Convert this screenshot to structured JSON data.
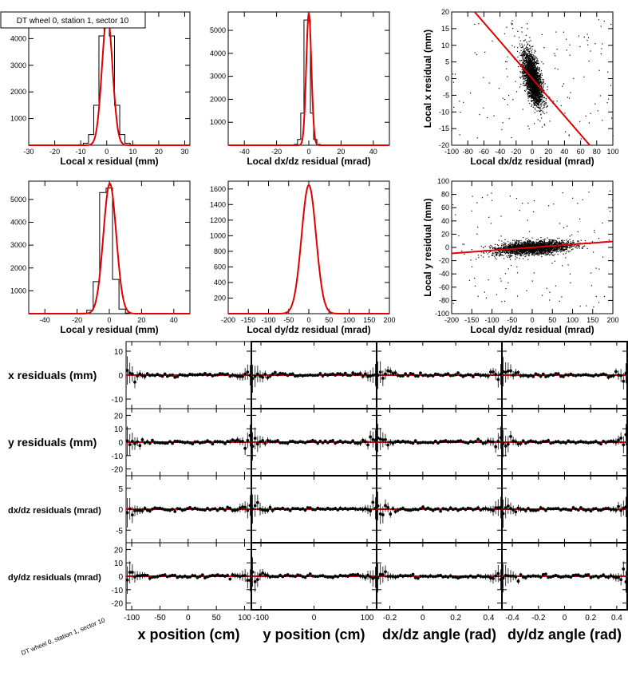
{
  "chart_data": [
    {
      "type": "histogram",
      "title": "DT wheel 0, station 1, sector 10",
      "xlabel": "Local x residual (mm)",
      "xlim": [
        -30,
        32
      ],
      "ylim": [
        0,
        5000
      ],
      "xticks": [
        "-30",
        "-20",
        "-10",
        "0",
        "10",
        "20",
        "30"
      ],
      "yticks": [
        "1000",
        "2000",
        "3000",
        "4000"
      ],
      "bins": {
        "x": [
          -12,
          -10,
          -8,
          -6,
          -4,
          -2,
          0,
          2,
          4,
          6,
          8,
          10,
          12
        ],
        "counts": [
          5,
          20,
          80,
          400,
          1500,
          4100,
          5000,
          4100,
          1500,
          400,
          80,
          20,
          5
        ]
      },
      "fit": {
        "mean": 0.2,
        "sigma": 2.0,
        "amplitude": 4900,
        "color": "#e00000"
      }
    },
    {
      "type": "histogram",
      "xlabel": "Local dx/dz residual (mrad)",
      "xlim": [
        -50,
        50
      ],
      "ylim": [
        0,
        5800
      ],
      "xticks": [
        "-40",
        "-20",
        "0",
        "20",
        "40"
      ],
      "yticks": [
        "1000",
        "2000",
        "3000",
        "4000",
        "5000"
      ],
      "bins": {
        "x": [
          -8,
          -6,
          -4,
          -2,
          0,
          2,
          4,
          6,
          8
        ],
        "counts": [
          40,
          250,
          1400,
          5450,
          5450,
          1400,
          250,
          40,
          5
        ]
      },
      "fit": {
        "mean": 0,
        "sigma": 1.6,
        "amplitude": 5750,
        "color": "#e00000"
      }
    },
    {
      "type": "scatter",
      "xlabel": "Local dx/dz residual (mrad)",
      "ylabel": "Local x residual (mm)",
      "xlim": [
        -100,
        100
      ],
      "ylim": [
        -20,
        20
      ],
      "xticks": [
        "-100",
        "-80",
        "-60",
        "-40",
        "-20",
        "0",
        "20",
        "40",
        "60",
        "80",
        "100"
      ],
      "yticks": [
        "-20",
        "-15",
        "-10",
        "-5",
        "0",
        "5",
        "10",
        "15",
        "20"
      ],
      "fit_line": {
        "slope": -0.28,
        "intercept": 0,
        "color": "#e00000"
      },
      "point_cloud": {
        "center": [
          0,
          0
        ],
        "spread": [
          6,
          4
        ],
        "correlation": -0.6
      }
    },
    {
      "type": "histogram",
      "xlabel": "Local y residual (mm)",
      "xlim": [
        -50,
        50
      ],
      "ylim": [
        0,
        5800
      ],
      "xticks": [
        "-40",
        "-20",
        "0",
        "20",
        "40"
      ],
      "yticks": [
        "1000",
        "2000",
        "3000",
        "4000",
        "5000"
      ],
      "bins": {
        "x": [
          -16,
          -12,
          -8,
          -4,
          0,
          4,
          8,
          12,
          16
        ],
        "counts": [
          20,
          150,
          1400,
          5300,
          5500,
          1500,
          200,
          30,
          5
        ]
      },
      "fit": {
        "mean": 0.3,
        "sigma": 4.0,
        "amplitude": 5700,
        "color": "#e00000"
      }
    },
    {
      "type": "histogram",
      "xlabel": "Local dy/dz residual (mrad)",
      "xlim": [
        -200,
        200
      ],
      "ylim": [
        0,
        1700
      ],
      "xticks": [
        "-200",
        "-150",
        "-100",
        "-50",
        "0",
        "50",
        "100",
        "150",
        "200"
      ],
      "yticks": [
        "200",
        "400",
        "600",
        "800",
        "1000",
        "1200",
        "1400",
        "1600"
      ],
      "fit": {
        "mean": 0,
        "sigma": 18,
        "amplitude": 1650,
        "color": "#e00000"
      }
    },
    {
      "type": "scatter",
      "xlabel": "Local dy/dz residual (mrad)",
      "ylabel": "Local y residual (mm)",
      "xlim": [
        -200,
        200
      ],
      "ylim": [
        -100,
        100
      ],
      "xticks": [
        "-200",
        "-150",
        "-100",
        "-50",
        "0",
        "50",
        "100",
        "150",
        "200"
      ],
      "yticks": [
        "-100",
        "-80",
        "-60",
        "-40",
        "-20",
        "0",
        "20",
        "40",
        "60",
        "80",
        "100"
      ],
      "fit_line": {
        "slope": 0.045,
        "intercept": 0,
        "color": "#e00000"
      },
      "point_cloud": {
        "center": [
          0,
          0
        ],
        "spread": [
          45,
          5
        ],
        "correlation": 0.3
      }
    },
    {
      "type": "profile-grid",
      "rows": [
        {
          "label": "x residuals (mm)",
          "ylim": [
            -14,
            14
          ],
          "yticks": [
            "-10",
            "0",
            "10"
          ]
        },
        {
          "label": "y residuals (mm)",
          "ylim": [
            -25,
            25
          ],
          "yticks": [
            "-20",
            "-10",
            "0",
            "10",
            "20"
          ]
        },
        {
          "label": "dx/dz residuals (mrad)",
          "ylim": [
            -8,
            8
          ],
          "yticks": [
            "-5",
            "0",
            "5"
          ]
        },
        {
          "label": "dy/dz residuals (mrad)",
          "ylim": [
            -25,
            25
          ],
          "yticks": [
            "-20",
            "-10",
            "0",
            "10",
            "20"
          ]
        }
      ],
      "columns": [
        {
          "xlabel": "x position (cm)",
          "xlim": [
            -110,
            112
          ],
          "xticks": [
            {
              "v": -100,
              "t": "-100"
            },
            {
              "v": -50,
              "t": "-50"
            },
            {
              "v": 0,
              "t": "0"
            },
            {
              "v": 50,
              "t": "50"
            },
            {
              "v": 100,
              "t": "100"
            }
          ]
        },
        {
          "xlabel": "y position (cm)",
          "xlim": [
            -118,
            118
          ],
          "xticks": [
            {
              "v": -100,
              "t": "-100"
            },
            {
              "v": 0,
              "t": "0"
            },
            {
              "v": 100,
              "t": "100"
            }
          ]
        },
        {
          "xlabel": "dx/dz angle (rad)",
          "xlim": [
            -0.28,
            0.48
          ],
          "xticks": [
            {
              "v": -0.2,
              "t": "-0.2"
            },
            {
              "v": 0,
              "t": "0"
            },
            {
              "v": 0.2,
              "t": "0.2"
            },
            {
              "v": 0.4,
              "t": "0.4"
            }
          ]
        },
        {
          "xlabel": "dy/dz angle (rad)",
          "xlim": [
            -0.48,
            0.48
          ],
          "xticks": [
            {
              "v": -0.4,
              "t": "-0.4"
            },
            {
              "v": -0.2,
              "t": "-0.2"
            },
            {
              "v": 0,
              "t": "0"
            },
            {
              "v": 0.2,
              "t": "0.2"
            },
            {
              "v": 0.4,
              "t": "0.4"
            }
          ]
        }
      ],
      "points_per_panel": 50,
      "fit_value": 0,
      "fit_color": "#e00000"
    }
  ],
  "footer_label": "DT wheel 0, station 1, sector 10",
  "colors": {
    "fit": "#e00000",
    "data": "#000000",
    "frame": "#000000"
  }
}
